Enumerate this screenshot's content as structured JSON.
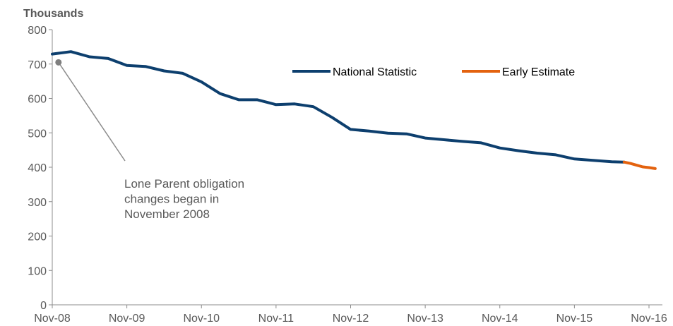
{
  "chart_data": {
    "type": "line",
    "ylabel": "Thousands",
    "ylim": [
      0,
      800
    ],
    "yticks": [
      "0",
      "100",
      "200",
      "300",
      "400",
      "500",
      "600",
      "700",
      "800"
    ],
    "xlim": [
      0,
      97
    ],
    "xticks": [
      {
        "label": "Nov-08",
        "x": 0
      },
      {
        "label": "Nov-09",
        "x": 12
      },
      {
        "label": "Nov-10",
        "x": 24
      },
      {
        "label": "Nov-11",
        "x": 36
      },
      {
        "label": "Nov-12",
        "x": 48
      },
      {
        "label": "Nov-13",
        "x": 60
      },
      {
        "label": "Nov-14",
        "x": 72
      },
      {
        "label": "Nov-15",
        "x": 84
      },
      {
        "label": "Nov-16",
        "x": 96
      }
    ],
    "grid": false,
    "legend_position": "top-right",
    "series": [
      {
        "name": "National Statistic",
        "color": "#0d3f6e",
        "x": [
          0,
          3,
          6,
          9,
          12,
          15,
          18,
          21,
          24,
          27,
          30,
          33,
          36,
          39,
          42,
          45,
          48,
          51,
          54,
          57,
          60,
          63,
          66,
          69,
          72,
          75,
          78,
          81,
          84,
          87,
          90,
          92
        ],
        "y": [
          729,
          736,
          721,
          716,
          696,
          693,
          680,
          673,
          648,
          614,
          596,
          596,
          582,
          584,
          576,
          545,
          510,
          505,
          499,
          497,
          485,
          480,
          475,
          471,
          456,
          448,
          441,
          436,
          424,
          420,
          416,
          415
        ]
      },
      {
        "name": "Early Estimate",
        "color": "#e3620f",
        "x": [
          92,
          93,
          94,
          95,
          96,
          97
        ],
        "y": [
          415,
          411,
          406,
          401,
          399,
          396
        ]
      }
    ],
    "annotation": {
      "lines": [
        "Lone Parent obligation",
        "changes began in",
        "November 2008"
      ],
      "point_x": 1,
      "point_y": 705,
      "marker_color": "#7f7f7f"
    }
  }
}
